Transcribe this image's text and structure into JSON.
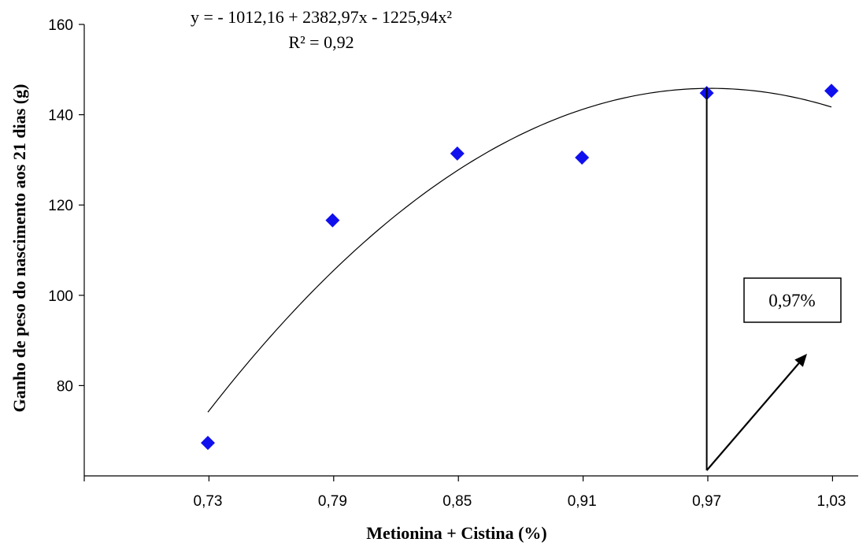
{
  "chart_data": {
    "type": "scatter",
    "title": "",
    "xlabel": "Metionina + Cistina (%)",
    "ylabel": "Ganho de peso do nascimento aos 21 dias (g)",
    "x_tick_labels": [
      "0,73",
      "0,79",
      "0,85",
      "0,91",
      "0,97",
      "1,03"
    ],
    "y_tick_labels": [
      "80",
      "100",
      "120",
      "140",
      "160"
    ],
    "y_ticks": [
      80,
      100,
      120,
      140,
      160
    ],
    "ylim": [
      60,
      160
    ],
    "grid": false,
    "series": [
      {
        "x": [
          0.73,
          0.79,
          0.85,
          0.91,
          0.97,
          1.03
        ],
        "y": [
          67.3,
          116.6,
          131.4,
          130.5,
          144.8,
          145.3
        ],
        "marker": "diamond",
        "color": "#1010ee"
      }
    ],
    "fit": {
      "type": "quadratic",
      "coefficients": [
        -1012.16,
        2382.97,
        -1225.94
      ],
      "x_range": [
        0.73,
        1.03
      ],
      "color": "#000000"
    },
    "equation_line1": "y = - 1012,16 + 2382,97x - 1225,94x²",
    "equation_line2": "R² = 0,92",
    "annotation": {
      "text": "0,97%",
      "marker_x": 0.97
    }
  }
}
